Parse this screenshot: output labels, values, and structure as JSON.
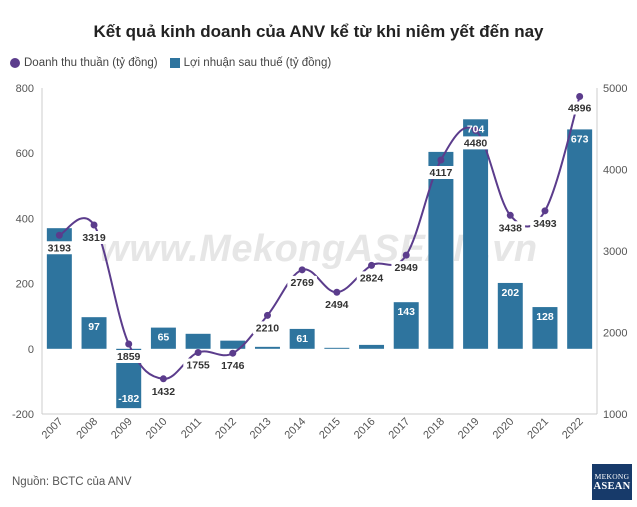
{
  "title": "Kết quả kinh doanh của ANV kể từ khi niêm yết đến nay",
  "source": "Nguồn: BCTC của ANV",
  "watermark": "www.MekongASEAN.vn",
  "logo": {
    "line1": "MEKONG",
    "line2": "ASEAN"
  },
  "colors": {
    "line": "#5b3c8c",
    "bar": "#2e749e",
    "label_bg": "#ffffff"
  },
  "chart_data": {
    "type": "bar",
    "categories": [
      "2007",
      "2008",
      "2009",
      "2010",
      "2011",
      "2012",
      "2013",
      "2014",
      "2015",
      "2016",
      "2017",
      "2018",
      "2019",
      "2020",
      "2021",
      "2022"
    ],
    "series": [
      {
        "name": "Doanh thu thuần (tỷ đồng)",
        "type": "line",
        "axis": "right",
        "values": [
          3193,
          3319,
          1859,
          1432,
          1755,
          1746,
          2210,
          2769,
          2494,
          2824,
          2949,
          4117,
          4480,
          3438,
          3493,
          4896
        ],
        "labels_shown": true
      },
      {
        "name": "Lợi nhuận sau thuế (tỷ đồng)",
        "type": "bar",
        "axis": "left",
        "values": [
          370,
          97,
          -182,
          65,
          46,
          25,
          6,
          61,
          3,
          12,
          143,
          604,
          704,
          202,
          128,
          673
        ],
        "labeled_indices": [
          1,
          2,
          3,
          7,
          10,
          12,
          13,
          14,
          15
        ],
        "value_labels": [
          "97",
          "-182",
          "65",
          "61",
          "143",
          "704",
          "202",
          "128",
          "673"
        ],
        "label_category_indices": [
          1,
          2,
          3,
          7,
          10,
          12,
          13,
          14,
          15
        ]
      }
    ],
    "y_left": {
      "min": -200,
      "max": 800,
      "ticks": [
        "-200",
        "0",
        "200",
        "400",
        "600",
        "800"
      ]
    },
    "y_right": {
      "min": 1000,
      "max": 5000,
      "ticks": [
        "1000",
        "2000",
        "3000",
        "4000",
        "5000"
      ]
    },
    "legend_position": "top-left",
    "grid": false
  }
}
